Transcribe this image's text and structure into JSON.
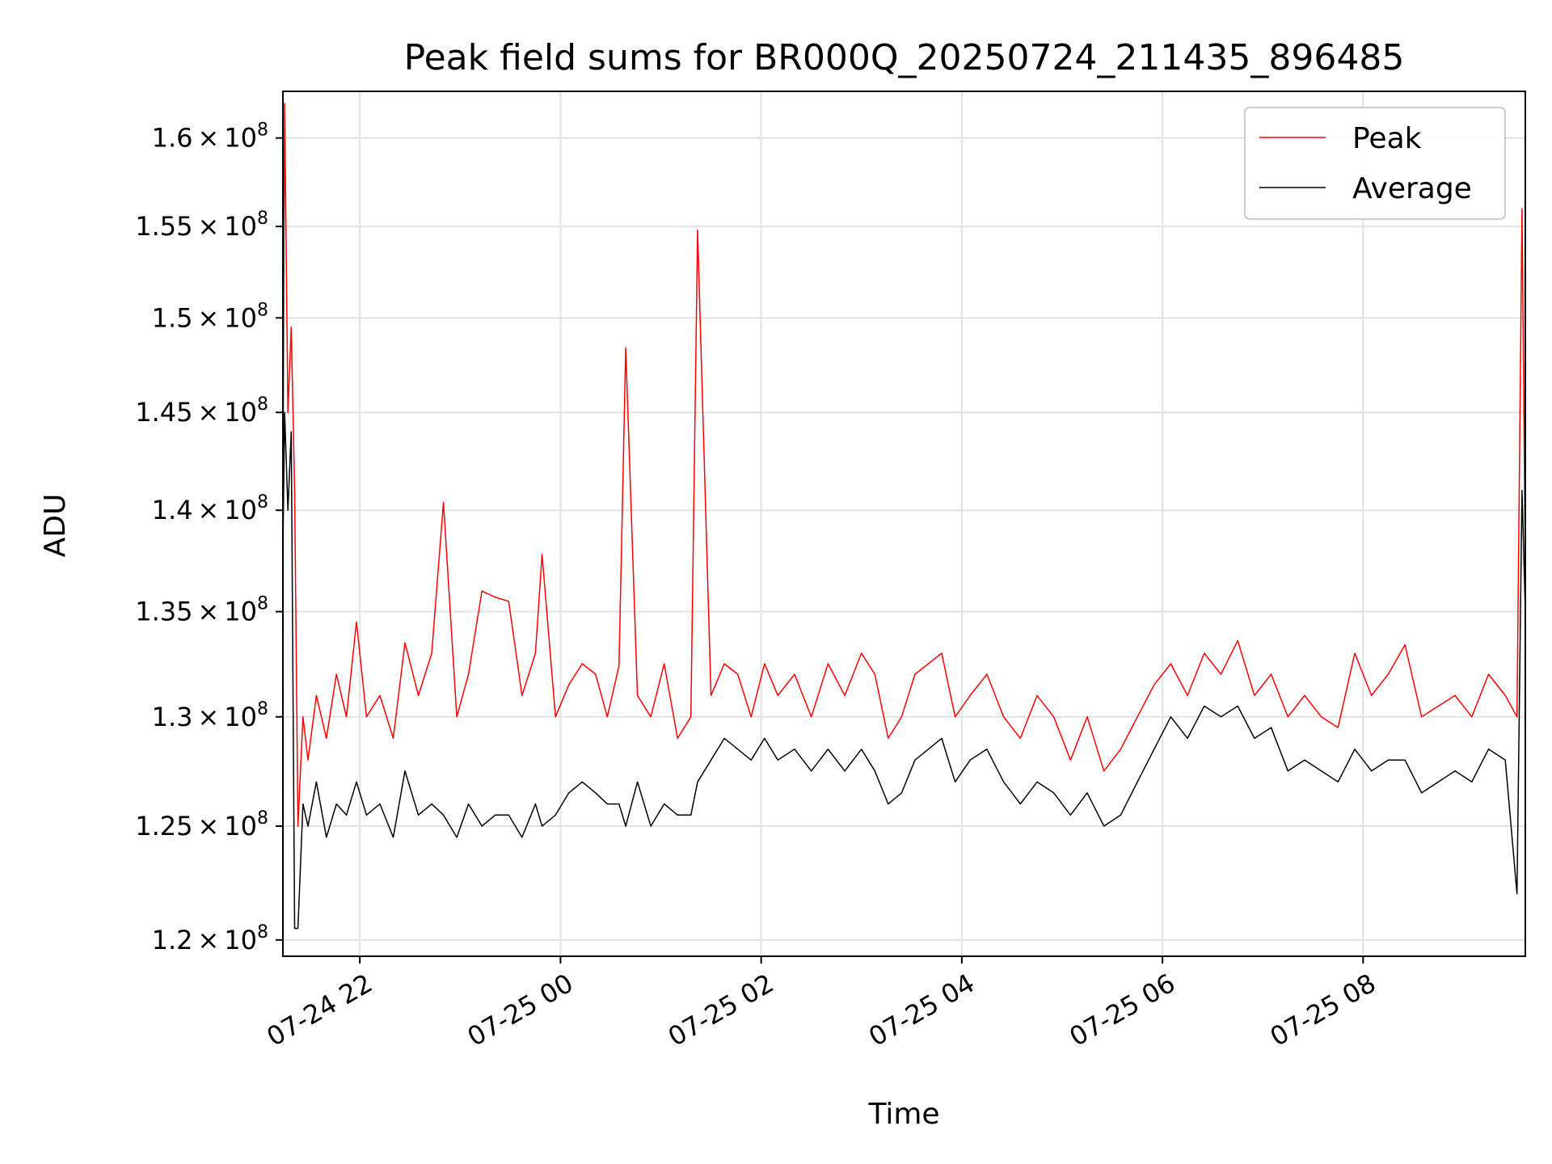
{
  "chart_data": {
    "type": "line",
    "title": "Peak field sums for BR000Q_20250724_211435_896485",
    "xlabel": "Time",
    "ylabel": "ADU",
    "y_scale": "log",
    "xlim": [
      "2025-07-24 21:14",
      "2025-07-25 09:37"
    ],
    "ylim": [
      119300000,
      162700000
    ],
    "x_ticks": [
      {
        "value": "2025-07-24 22:00",
        "label": "07-24 22"
      },
      {
        "value": "2025-07-25 00:00",
        "label": "07-25 00"
      },
      {
        "value": "2025-07-25 02:00",
        "label": "07-25 02"
      },
      {
        "value": "2025-07-25 04:00",
        "label": "07-25 04"
      },
      {
        "value": "2025-07-25 06:00",
        "label": "07-25 06"
      },
      {
        "value": "2025-07-25 08:00",
        "label": "07-25 08"
      }
    ],
    "y_ticks": [
      {
        "value": 120000000,
        "mantissa": "1.2",
        "exponent": "8"
      },
      {
        "value": 125000000,
        "mantissa": "1.25",
        "exponent": "8"
      },
      {
        "value": 130000000,
        "mantissa": "1.3",
        "exponent": "8"
      },
      {
        "value": 135000000,
        "mantissa": "1.35",
        "exponent": "8"
      },
      {
        "value": 140000000,
        "mantissa": "1.4",
        "exponent": "8"
      },
      {
        "value": 145000000,
        "mantissa": "1.45",
        "exponent": "8"
      },
      {
        "value": 150000000,
        "mantissa": "1.5",
        "exponent": "8"
      },
      {
        "value": 155000000,
        "mantissa": "1.55",
        "exponent": "8"
      },
      {
        "value": 160000000,
        "mantissa": "1.6",
        "exponent": "8"
      }
    ],
    "times_sign": "×",
    "base": "10",
    "grid": true,
    "legend": "top-right",
    "series": [
      {
        "name": "Peak",
        "color": "#ff0000",
        "points": [
          [
            "2025-07-24 21:14",
            140000000.0
          ],
          [
            "2025-07-24 21:15",
            162000000.0
          ],
          [
            "2025-07-24 21:17",
            145000000.0
          ],
          [
            "2025-07-24 21:19",
            149500000.0
          ],
          [
            "2025-07-24 21:21",
            141000000.0
          ],
          [
            "2025-07-24 21:23",
            125000000.0
          ],
          [
            "2025-07-24 21:26",
            130000000.0
          ],
          [
            "2025-07-24 21:29",
            128000000.0
          ],
          [
            "2025-07-24 21:34",
            131000000.0
          ],
          [
            "2025-07-24 21:40",
            129000000.0
          ],
          [
            "2025-07-24 21:46",
            132000000.0
          ],
          [
            "2025-07-24 21:52",
            130000000.0
          ],
          [
            "2025-07-24 21:58",
            134500000.0
          ],
          [
            "2025-07-24 22:04",
            130000000.0
          ],
          [
            "2025-07-24 22:12",
            131000000.0
          ],
          [
            "2025-07-24 22:20",
            129000000.0
          ],
          [
            "2025-07-24 22:27",
            133500000.0
          ],
          [
            "2025-07-24 22:35",
            131000000.0
          ],
          [
            "2025-07-24 22:43",
            133000000.0
          ],
          [
            "2025-07-24 22:50",
            140400000.0
          ],
          [
            "2025-07-24 22:58",
            130000000.0
          ],
          [
            "2025-07-24 23:05",
            132000000.0
          ],
          [
            "2025-07-24 23:13",
            136000000.0
          ],
          [
            "2025-07-24 23:21",
            135700000.0
          ],
          [
            "2025-07-24 23:29",
            135500000.0
          ],
          [
            "2025-07-24 23:37",
            131000000.0
          ],
          [
            "2025-07-24 23:45",
            133000000.0
          ],
          [
            "2025-07-24 23:49",
            137800000.0
          ],
          [
            "2025-07-24 23:57",
            130000000.0
          ],
          [
            "2025-07-25 00:05",
            131500000.0
          ],
          [
            "2025-07-25 00:13",
            132500000.0
          ],
          [
            "2025-07-25 00:21",
            132000000.0
          ],
          [
            "2025-07-25 00:28",
            130000000.0
          ],
          [
            "2025-07-25 00:35",
            132400000.0
          ],
          [
            "2025-07-25 00:39",
            148400000.0
          ],
          [
            "2025-07-25 00:46",
            131000000.0
          ],
          [
            "2025-07-25 00:54",
            130000000.0
          ],
          [
            "2025-07-25 01:02",
            132500000.0
          ],
          [
            "2025-07-25 01:10",
            129000000.0
          ],
          [
            "2025-07-25 01:18",
            130000000.0
          ],
          [
            "2025-07-25 01:22",
            154800000.0
          ],
          [
            "2025-07-25 01:30",
            131000000.0
          ],
          [
            "2025-07-25 01:38",
            132500000.0
          ],
          [
            "2025-07-25 01:46",
            132000000.0
          ],
          [
            "2025-07-25 01:54",
            130000000.0
          ],
          [
            "2025-07-25 02:02",
            132500000.0
          ],
          [
            "2025-07-25 02:10",
            131000000.0
          ],
          [
            "2025-07-25 02:20",
            132000000.0
          ],
          [
            "2025-07-25 02:30",
            130000000.0
          ],
          [
            "2025-07-25 02:40",
            132500000.0
          ],
          [
            "2025-07-25 02:50",
            131000000.0
          ],
          [
            "2025-07-25 03:00",
            133000000.0
          ],
          [
            "2025-07-25 03:08",
            132000000.0
          ],
          [
            "2025-07-25 03:16",
            129000000.0
          ],
          [
            "2025-07-25 03:24",
            130000000.0
          ],
          [
            "2025-07-25 03:32",
            132000000.0
          ],
          [
            "2025-07-25 03:40",
            132500000.0
          ],
          [
            "2025-07-25 03:48",
            133000000.0
          ],
          [
            "2025-07-25 03:56",
            130000000.0
          ],
          [
            "2025-07-25 04:05",
            131000000.0
          ],
          [
            "2025-07-25 04:15",
            132000000.0
          ],
          [
            "2025-07-25 04:25",
            130000000.0
          ],
          [
            "2025-07-25 04:35",
            129000000.0
          ],
          [
            "2025-07-25 04:45",
            131000000.0
          ],
          [
            "2025-07-25 04:55",
            130000000.0
          ],
          [
            "2025-07-25 05:05",
            128000000.0
          ],
          [
            "2025-07-25 05:15",
            130000000.0
          ],
          [
            "2025-07-25 05:25",
            127500000.0
          ],
          [
            "2025-07-25 05:35",
            128500000.0
          ],
          [
            "2025-07-25 05:45",
            130000000.0
          ],
          [
            "2025-07-25 05:55",
            131500000.0
          ],
          [
            "2025-07-25 06:05",
            132500000.0
          ],
          [
            "2025-07-25 06:15",
            131000000.0
          ],
          [
            "2025-07-25 06:25",
            133000000.0
          ],
          [
            "2025-07-25 06:35",
            132000000.0
          ],
          [
            "2025-07-25 06:45",
            133600000.0
          ],
          [
            "2025-07-25 06:55",
            131000000.0
          ],
          [
            "2025-07-25 07:05",
            132000000.0
          ],
          [
            "2025-07-25 07:15",
            130000000.0
          ],
          [
            "2025-07-25 07:25",
            131000000.0
          ],
          [
            "2025-07-25 07:35",
            130000000.0
          ],
          [
            "2025-07-25 07:45",
            129500000.0
          ],
          [
            "2025-07-25 07:55",
            133000000.0
          ],
          [
            "2025-07-25 08:05",
            131000000.0
          ],
          [
            "2025-07-25 08:15",
            132000000.0
          ],
          [
            "2025-07-25 08:25",
            133400000.0
          ],
          [
            "2025-07-25 08:35",
            130000000.0
          ],
          [
            "2025-07-25 08:45",
            130500000.0
          ],
          [
            "2025-07-25 08:55",
            131000000.0
          ],
          [
            "2025-07-25 09:05",
            130000000.0
          ],
          [
            "2025-07-25 09:15",
            132000000.0
          ],
          [
            "2025-07-25 09:25",
            131000000.0
          ],
          [
            "2025-07-25 09:32",
            130000000.0
          ],
          [
            "2025-07-25 09:35",
            156000000.0
          ],
          [
            "2025-07-25 09:37",
            137000000.0
          ]
        ]
      },
      {
        "name": "Average",
        "color": "#000000",
        "points": [
          [
            "2025-07-24 21:14",
            138000000.0
          ],
          [
            "2025-07-24 21:15",
            145000000.0
          ],
          [
            "2025-07-24 21:17",
            140000000.0
          ],
          [
            "2025-07-24 21:19",
            144000000.0
          ],
          [
            "2025-07-24 21:21",
            120500000.0
          ],
          [
            "2025-07-24 21:23",
            120500000.0
          ],
          [
            "2025-07-24 21:26",
            126000000.0
          ],
          [
            "2025-07-24 21:29",
            125000000.0
          ],
          [
            "2025-07-24 21:34",
            127000000.0
          ],
          [
            "2025-07-24 21:40",
            124500000.0
          ],
          [
            "2025-07-24 21:46",
            126000000.0
          ],
          [
            "2025-07-24 21:52",
            125500000.0
          ],
          [
            "2025-07-24 21:58",
            127000000.0
          ],
          [
            "2025-07-24 22:04",
            125500000.0
          ],
          [
            "2025-07-24 22:12",
            126000000.0
          ],
          [
            "2025-07-24 22:20",
            124500000.0
          ],
          [
            "2025-07-24 22:27",
            127500000.0
          ],
          [
            "2025-07-24 22:35",
            125500000.0
          ],
          [
            "2025-07-24 22:43",
            126000000.0
          ],
          [
            "2025-07-24 22:50",
            125500000.0
          ],
          [
            "2025-07-24 22:58",
            124500000.0
          ],
          [
            "2025-07-24 23:05",
            126000000.0
          ],
          [
            "2025-07-24 23:13",
            125000000.0
          ],
          [
            "2025-07-24 23:21",
            125500000.0
          ],
          [
            "2025-07-24 23:29",
            125500000.0
          ],
          [
            "2025-07-24 23:37",
            124500000.0
          ],
          [
            "2025-07-24 23:45",
            126000000.0
          ],
          [
            "2025-07-24 23:49",
            125000000.0
          ],
          [
            "2025-07-24 23:57",
            125500000.0
          ],
          [
            "2025-07-25 00:05",
            126500000.0
          ],
          [
            "2025-07-25 00:13",
            127000000.0
          ],
          [
            "2025-07-25 00:21",
            126500000.0
          ],
          [
            "2025-07-25 00:28",
            126000000.0
          ],
          [
            "2025-07-25 00:35",
            126000000.0
          ],
          [
            "2025-07-25 00:39",
            125000000.0
          ],
          [
            "2025-07-25 00:46",
            127000000.0
          ],
          [
            "2025-07-25 00:54",
            125000000.0
          ],
          [
            "2025-07-25 01:02",
            126000000.0
          ],
          [
            "2025-07-25 01:10",
            125500000.0
          ],
          [
            "2025-07-25 01:18",
            125500000.0
          ],
          [
            "2025-07-25 01:22",
            127000000.0
          ],
          [
            "2025-07-25 01:30",
            128000000.0
          ],
          [
            "2025-07-25 01:38",
            129000000.0
          ],
          [
            "2025-07-25 01:46",
            128500000.0
          ],
          [
            "2025-07-25 01:54",
            128000000.0
          ],
          [
            "2025-07-25 02:02",
            129000000.0
          ],
          [
            "2025-07-25 02:10",
            128000000.0
          ],
          [
            "2025-07-25 02:20",
            128500000.0
          ],
          [
            "2025-07-25 02:30",
            127500000.0
          ],
          [
            "2025-07-25 02:40",
            128500000.0
          ],
          [
            "2025-07-25 02:50",
            127500000.0
          ],
          [
            "2025-07-25 03:00",
            128500000.0
          ],
          [
            "2025-07-25 03:08",
            127500000.0
          ],
          [
            "2025-07-25 03:16",
            126000000.0
          ],
          [
            "2025-07-25 03:24",
            126500000.0
          ],
          [
            "2025-07-25 03:32",
            128000000.0
          ],
          [
            "2025-07-25 03:40",
            128500000.0
          ],
          [
            "2025-07-25 03:48",
            129000000.0
          ],
          [
            "2025-07-25 03:56",
            127000000.0
          ],
          [
            "2025-07-25 04:05",
            128000000.0
          ],
          [
            "2025-07-25 04:15",
            128500000.0
          ],
          [
            "2025-07-25 04:25",
            127000000.0
          ],
          [
            "2025-07-25 04:35",
            126000000.0
          ],
          [
            "2025-07-25 04:45",
            127000000.0
          ],
          [
            "2025-07-25 04:55",
            126500000.0
          ],
          [
            "2025-07-25 05:05",
            125500000.0
          ],
          [
            "2025-07-25 05:15",
            126500000.0
          ],
          [
            "2025-07-25 05:25",
            125000000.0
          ],
          [
            "2025-07-25 05:35",
            125500000.0
          ],
          [
            "2025-07-25 05:45",
            127000000.0
          ],
          [
            "2025-07-25 05:55",
            128500000.0
          ],
          [
            "2025-07-25 06:05",
            130000000.0
          ],
          [
            "2025-07-25 06:15",
            129000000.0
          ],
          [
            "2025-07-25 06:25",
            130500000.0
          ],
          [
            "2025-07-25 06:35",
            130000000.0
          ],
          [
            "2025-07-25 06:45",
            130500000.0
          ],
          [
            "2025-07-25 06:55",
            129000000.0
          ],
          [
            "2025-07-25 07:05",
            129500000.0
          ],
          [
            "2025-07-25 07:15",
            127500000.0
          ],
          [
            "2025-07-25 07:25",
            128000000.0
          ],
          [
            "2025-07-25 07:35",
            127500000.0
          ],
          [
            "2025-07-25 07:45",
            127000000.0
          ],
          [
            "2025-07-25 07:55",
            128500000.0
          ],
          [
            "2025-07-25 08:05",
            127500000.0
          ],
          [
            "2025-07-25 08:15",
            128000000.0
          ],
          [
            "2025-07-25 08:25",
            128000000.0
          ],
          [
            "2025-07-25 08:35",
            126500000.0
          ],
          [
            "2025-07-25 08:45",
            127000000.0
          ],
          [
            "2025-07-25 08:55",
            127500000.0
          ],
          [
            "2025-07-25 09:05",
            127000000.0
          ],
          [
            "2025-07-25 09:15",
            128500000.0
          ],
          [
            "2025-07-25 09:25",
            128000000.0
          ],
          [
            "2025-07-25 09:32",
            122000000.0
          ],
          [
            "2025-07-25 09:35",
            141000000.0
          ],
          [
            "2025-07-25 09:37",
            135000000.0
          ]
        ]
      }
    ]
  }
}
